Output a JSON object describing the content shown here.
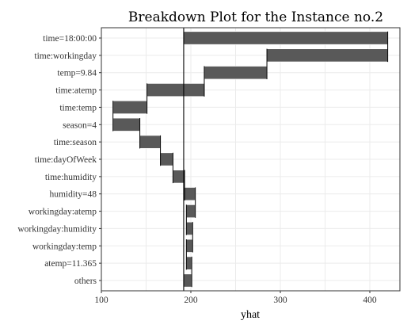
{
  "chart_data": {
    "type": "bar",
    "title": "Breakdown Plot for the Instance no.2",
    "xlabel": "yhat",
    "ylabel": "",
    "xlim": [
      100,
      440
    ],
    "x_ticks": [
      100,
      200,
      300,
      400
    ],
    "intercept": 192,
    "grid": true,
    "categories": [
      "time=18:00:00",
      "time:workingday",
      "temp=9.84",
      "time:atemp",
      "time:temp",
      "season=4",
      "time:season",
      "time:dayOfWeek",
      "time:humidity",
      "humidity=48",
      "workingday:atemp",
      "workingday:humidity",
      "workingday:temp",
      "atemp=11.365",
      "others"
    ],
    "bars": [
      {
        "start": 192,
        "end": 420
      },
      {
        "start": 420,
        "end": 285
      },
      {
        "start": 285,
        "end": 215
      },
      {
        "start": 215,
        "end": 151
      },
      {
        "start": 151,
        "end": 113
      },
      {
        "start": 113,
        "end": 143
      },
      {
        "start": 143,
        "end": 166
      },
      {
        "start": 166,
        "end": 180
      },
      {
        "start": 180,
        "end": 193
      },
      {
        "start": 193,
        "end": 205
      },
      {
        "start": 205,
        "end": 195
      },
      {
        "start": 195,
        "end": 202
      },
      {
        "start": 202,
        "end": 195
      },
      {
        "start": 195,
        "end": 201
      },
      {
        "start": 192,
        "end": 201
      }
    ]
  }
}
